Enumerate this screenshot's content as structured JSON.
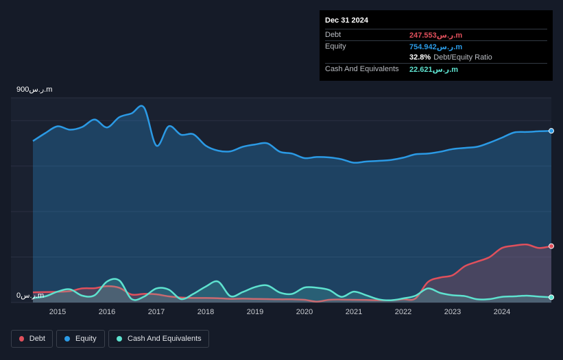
{
  "tooltip": {
    "date": "Dec 31 2024",
    "debt_label": "Debt",
    "debt_value": "247.553ر.س.m",
    "equity_label": "Equity",
    "equity_value": "754.942ر.س.m",
    "ratio_value": "32.8%",
    "ratio_label": "Debt/Equity Ratio",
    "cash_label": "Cash And Equivalents",
    "cash_value": "22.621ر.س.m"
  },
  "legend": {
    "debt": "Debt",
    "equity": "Equity",
    "cash": "Cash And Equivalents"
  },
  "colors": {
    "debt": "#e0505c",
    "equity": "#2b9ae5",
    "cash": "#5ee2cf",
    "background": "#151b28"
  },
  "chart_data": {
    "type": "area",
    "title": "",
    "y_unit": "ر.س.m",
    "y_max_label": "900ر.س.m",
    "y_min_label": "0ر.س.m",
    "ylim": [
      0,
      900
    ],
    "xlim": [
      2014.5,
      2025.0
    ],
    "x_ticks": [
      "2015",
      "2016",
      "2017",
      "2018",
      "2019",
      "2020",
      "2021",
      "2022",
      "2023",
      "2024"
    ],
    "grid": true,
    "legend_position": "bottom-left",
    "series": [
      {
        "name": "Equity",
        "key": "equity",
        "points": [
          [
            2014.5,
            710
          ],
          [
            2014.75,
            745
          ],
          [
            2015.0,
            775
          ],
          [
            2015.25,
            760
          ],
          [
            2015.5,
            772
          ],
          [
            2015.75,
            805
          ],
          [
            2016.0,
            770
          ],
          [
            2016.25,
            815
          ],
          [
            2016.5,
            832
          ],
          [
            2016.75,
            858
          ],
          [
            2017.0,
            690
          ],
          [
            2017.25,
            775
          ],
          [
            2017.5,
            738
          ],
          [
            2017.75,
            740
          ],
          [
            2018.0,
            690
          ],
          [
            2018.25,
            668
          ],
          [
            2018.5,
            665
          ],
          [
            2018.75,
            685
          ],
          [
            2019.0,
            695
          ],
          [
            2019.25,
            700
          ],
          [
            2019.5,
            663
          ],
          [
            2019.75,
            655
          ],
          [
            2020.0,
            635
          ],
          [
            2020.25,
            640
          ],
          [
            2020.5,
            638
          ],
          [
            2020.75,
            630
          ],
          [
            2021.0,
            615
          ],
          [
            2021.25,
            620
          ],
          [
            2021.5,
            623
          ],
          [
            2021.75,
            627
          ],
          [
            2022.0,
            637
          ],
          [
            2022.25,
            652
          ],
          [
            2022.5,
            655
          ],
          [
            2022.75,
            663
          ],
          [
            2023.0,
            675
          ],
          [
            2023.25,
            680
          ],
          [
            2023.5,
            685
          ],
          [
            2023.75,
            703
          ],
          [
            2024.0,
            725
          ],
          [
            2024.25,
            748
          ],
          [
            2024.5,
            750
          ],
          [
            2024.75,
            753
          ],
          [
            2025.0,
            755
          ]
        ]
      },
      {
        "name": "Debt",
        "key": "debt",
        "points": [
          [
            2014.5,
            45
          ],
          [
            2014.75,
            46
          ],
          [
            2015.0,
            47
          ],
          [
            2015.25,
            50
          ],
          [
            2015.5,
            62
          ],
          [
            2015.75,
            63
          ],
          [
            2016.0,
            72
          ],
          [
            2016.25,
            65
          ],
          [
            2016.5,
            35
          ],
          [
            2016.75,
            38
          ],
          [
            2017.0,
            36
          ],
          [
            2017.25,
            27
          ],
          [
            2017.5,
            22
          ],
          [
            2017.75,
            20
          ],
          [
            2018.0,
            20
          ],
          [
            2018.25,
            19
          ],
          [
            2018.5,
            16
          ],
          [
            2018.75,
            17
          ],
          [
            2019.0,
            16
          ],
          [
            2019.25,
            15
          ],
          [
            2019.5,
            14
          ],
          [
            2019.75,
            14
          ],
          [
            2020.0,
            12
          ],
          [
            2020.25,
            4
          ],
          [
            2020.5,
            12
          ],
          [
            2020.75,
            13
          ],
          [
            2021.0,
            12
          ],
          [
            2021.25,
            11
          ],
          [
            2021.5,
            10
          ],
          [
            2021.75,
            10
          ],
          [
            2022.0,
            14
          ],
          [
            2022.25,
            18
          ],
          [
            2022.5,
            90
          ],
          [
            2022.75,
            110
          ],
          [
            2023.0,
            120
          ],
          [
            2023.25,
            160
          ],
          [
            2023.5,
            180
          ],
          [
            2023.75,
            200
          ],
          [
            2024.0,
            240
          ],
          [
            2024.25,
            250
          ],
          [
            2024.5,
            255
          ],
          [
            2024.75,
            240
          ],
          [
            2025.0,
            248
          ]
        ]
      },
      {
        "name": "Cash And Equivalents",
        "key": "cash",
        "points": [
          [
            2014.5,
            20
          ],
          [
            2014.75,
            27
          ],
          [
            2015.0,
            48
          ],
          [
            2015.25,
            58
          ],
          [
            2015.5,
            30
          ],
          [
            2015.75,
            32
          ],
          [
            2016.0,
            92
          ],
          [
            2016.25,
            97
          ],
          [
            2016.5,
            15
          ],
          [
            2016.75,
            26
          ],
          [
            2017.0,
            62
          ],
          [
            2017.25,
            57
          ],
          [
            2017.5,
            15
          ],
          [
            2017.75,
            38
          ],
          [
            2018.0,
            70
          ],
          [
            2018.25,
            92
          ],
          [
            2018.5,
            28
          ],
          [
            2018.75,
            46
          ],
          [
            2019.0,
            68
          ],
          [
            2019.25,
            75
          ],
          [
            2019.5,
            44
          ],
          [
            2019.75,
            38
          ],
          [
            2020.0,
            66
          ],
          [
            2020.25,
            65
          ],
          [
            2020.5,
            55
          ],
          [
            2020.75,
            25
          ],
          [
            2021.0,
            48
          ],
          [
            2021.25,
            32
          ],
          [
            2021.5,
            14
          ],
          [
            2021.75,
            10
          ],
          [
            2022.0,
            18
          ],
          [
            2022.25,
            30
          ],
          [
            2022.5,
            62
          ],
          [
            2022.75,
            42
          ],
          [
            2023.0,
            32
          ],
          [
            2023.25,
            28
          ],
          [
            2023.5,
            14
          ],
          [
            2023.75,
            15
          ],
          [
            2024.0,
            25
          ],
          [
            2024.25,
            27
          ],
          [
            2024.5,
            30
          ],
          [
            2024.75,
            26
          ],
          [
            2025.0,
            23
          ]
        ]
      }
    ]
  }
}
